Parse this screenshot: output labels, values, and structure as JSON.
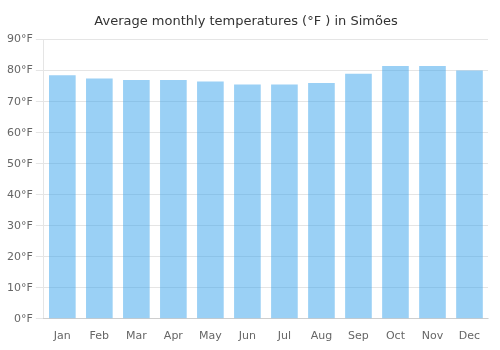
{
  "chart_data": {
    "type": "bar",
    "title": "Average monthly temperatures (°F ) in Simões",
    "categories": [
      "Jan",
      "Feb",
      "Mar",
      "Apr",
      "May",
      "Jun",
      "Jul",
      "Aug",
      "Sep",
      "Oct",
      "Nov",
      "Dec"
    ],
    "values": [
      78.5,
      77.5,
      77.0,
      77.0,
      76.5,
      75.5,
      75.5,
      76.0,
      79.0,
      81.5,
      81.5,
      80.0
    ],
    "ylim": [
      0,
      90
    ],
    "yticks": [
      {
        "value": 0,
        "label": "0°F"
      },
      {
        "value": 10,
        "label": "10°F"
      },
      {
        "value": 20,
        "label": "20°F"
      },
      {
        "value": 30,
        "label": "30°F"
      },
      {
        "value": 40,
        "label": "40°F"
      },
      {
        "value": 50,
        "label": "50°F"
      },
      {
        "value": 60,
        "label": "60°F"
      },
      {
        "value": 70,
        "label": "70°F"
      },
      {
        "value": 80,
        "label": "80°F"
      },
      {
        "value": 90,
        "label": "90°F"
      }
    ],
    "grid": true
  }
}
